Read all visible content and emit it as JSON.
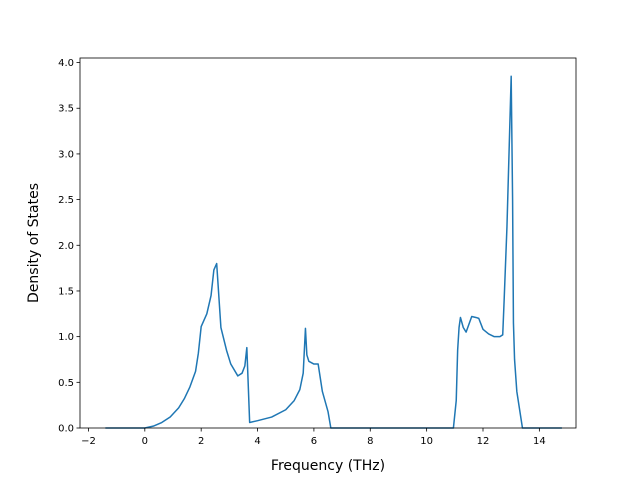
{
  "chart_data": {
    "type": "line",
    "title": "",
    "xlabel": "Frequency (THz)",
    "ylabel": "Density of States",
    "xlim": [
      -2.3,
      15.3
    ],
    "ylim": [
      0,
      4.05
    ],
    "xticks": [
      -2,
      0,
      2,
      4,
      6,
      8,
      10,
      12,
      14
    ],
    "yticks": [
      0.0,
      0.5,
      1.0,
      1.5,
      2.0,
      2.5,
      3.0,
      3.5,
      4.0
    ],
    "xtick_labels": [
      "−2",
      "0",
      "2",
      "4",
      "6",
      "8",
      "10",
      "12",
      "14"
    ],
    "ytick_labels": [
      "0.0",
      "0.5",
      "1.0",
      "1.5",
      "2.0",
      "2.5",
      "3.0",
      "3.5",
      "4.0"
    ],
    "grid": false,
    "legend": "none",
    "series": [
      {
        "color": "#1f77b4",
        "x": [
          -1.4,
          -0.5,
          0.0,
          0.3,
          0.6,
          0.9,
          1.2,
          1.4,
          1.6,
          1.8,
          1.9,
          2.0,
          2.2,
          2.35,
          2.45,
          2.55,
          2.7,
          2.9,
          3.05,
          3.3,
          3.45,
          3.55,
          3.62,
          3.72,
          4.0,
          4.5,
          5.0,
          5.3,
          5.5,
          5.62,
          5.7,
          5.75,
          5.82,
          6.0,
          6.15,
          6.3,
          6.5,
          6.6,
          10.95,
          11.05,
          11.1,
          11.15,
          11.2,
          11.3,
          11.4,
          11.6,
          11.75,
          11.85,
          12.0,
          12.2,
          12.4,
          12.6,
          12.7,
          12.75,
          12.85,
          13.0,
          13.05,
          13.08,
          13.12,
          13.2,
          13.4,
          13.5,
          14.8
        ],
        "y": [
          0.0,
          0.0,
          0.0,
          0.02,
          0.06,
          0.12,
          0.22,
          0.32,
          0.45,
          0.62,
          0.82,
          1.11,
          1.25,
          1.45,
          1.73,
          1.8,
          1.1,
          0.85,
          0.7,
          0.57,
          0.6,
          0.68,
          0.88,
          0.06,
          0.08,
          0.12,
          0.2,
          0.3,
          0.42,
          0.6,
          1.09,
          0.8,
          0.73,
          0.7,
          0.7,
          0.4,
          0.18,
          0.0,
          0.0,
          0.3,
          0.85,
          1.1,
          1.21,
          1.1,
          1.05,
          1.22,
          1.21,
          1.2,
          1.08,
          1.03,
          1.0,
          1.0,
          1.02,
          1.4,
          2.2,
          3.85,
          2.5,
          1.15,
          0.75,
          0.4,
          0.0,
          0.0,
          0.0
        ]
      }
    ]
  }
}
